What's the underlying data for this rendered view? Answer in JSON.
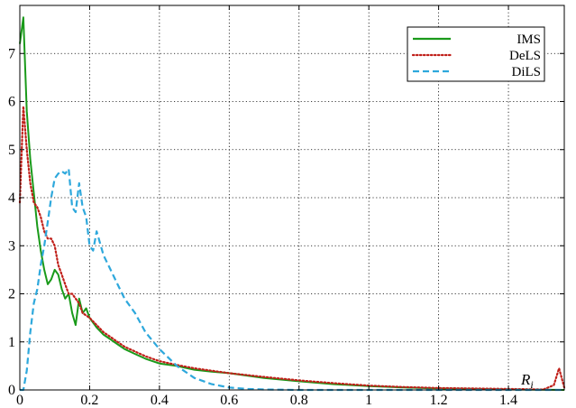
{
  "chart_data": {
    "type": "line",
    "title": "",
    "xlabel": "R",
    "xlabel_sub": "i",
    "ylabel": "",
    "xlim": [
      0,
      1.56
    ],
    "ylim": [
      0,
      8
    ],
    "grid": true,
    "legend_position": "top-right",
    "xticks": [
      0,
      0.2,
      0.4,
      0.6,
      0.8,
      1,
      1.2,
      1.4
    ],
    "xtick_labels": [
      "0",
      "0.2",
      "0.4",
      "0.6",
      "0.8",
      "1",
      "1.2",
      "1.4"
    ],
    "yticks": [
      0,
      1,
      2,
      3,
      4,
      5,
      6,
      7
    ],
    "ytick_labels": [
      "0",
      "1",
      "2",
      "3",
      "4",
      "5",
      "6",
      "7"
    ],
    "series": [
      {
        "name": "IMS",
        "color": "#1a9a1a",
        "style": "solid",
        "x": [
          0,
          0.01,
          0.02,
          0.03,
          0.04,
          0.05,
          0.06,
          0.07,
          0.08,
          0.09,
          0.1,
          0.11,
          0.12,
          0.13,
          0.14,
          0.15,
          0.16,
          0.17,
          0.18,
          0.19,
          0.2,
          0.22,
          0.24,
          0.26,
          0.28,
          0.3,
          0.33,
          0.36,
          0.4,
          0.45,
          0.5,
          0.55,
          0.6,
          0.7,
          0.8,
          0.9,
          1.0,
          1.1,
          1.2,
          1.3,
          1.4,
          1.5,
          1.56
        ],
        "values": [
          7.2,
          7.75,
          5.8,
          4.8,
          4.1,
          3.4,
          2.9,
          2.5,
          2.2,
          2.3,
          2.5,
          2.4,
          2.1,
          1.9,
          2.0,
          1.6,
          1.35,
          1.9,
          1.6,
          1.7,
          1.5,
          1.3,
          1.15,
          1.05,
          0.95,
          0.85,
          0.75,
          0.65,
          0.55,
          0.5,
          0.42,
          0.38,
          0.35,
          0.25,
          0.18,
          0.12,
          0.08,
          0.05,
          0.03,
          0.02,
          0.01,
          0.005,
          0.0
        ]
      },
      {
        "name": "DeLS",
        "color": "#c0201a",
        "style": "dotted",
        "x": [
          0,
          0.01,
          0.02,
          0.03,
          0.04,
          0.05,
          0.06,
          0.07,
          0.08,
          0.09,
          0.1,
          0.11,
          0.12,
          0.13,
          0.14,
          0.15,
          0.16,
          0.17,
          0.18,
          0.19,
          0.2,
          0.22,
          0.24,
          0.26,
          0.28,
          0.3,
          0.33,
          0.36,
          0.4,
          0.45,
          0.5,
          0.55,
          0.6,
          0.7,
          0.8,
          0.9,
          1.0,
          1.1,
          1.2,
          1.3,
          1.4,
          1.5,
          1.53,
          1.545,
          1.56
        ],
        "values": [
          3.9,
          5.9,
          5.0,
          4.3,
          3.9,
          3.8,
          3.6,
          3.3,
          3.15,
          3.15,
          3.0,
          2.6,
          2.4,
          2.2,
          2.0,
          2.0,
          1.9,
          1.8,
          1.6,
          1.55,
          1.5,
          1.35,
          1.2,
          1.1,
          1.0,
          0.9,
          0.8,
          0.7,
          0.6,
          0.52,
          0.45,
          0.4,
          0.35,
          0.27,
          0.2,
          0.14,
          0.09,
          0.06,
          0.04,
          0.03,
          0.02,
          0.01,
          0.1,
          0.45,
          0.05
        ]
      },
      {
        "name": "DiLS",
        "color": "#2ea8dc",
        "style": "dashed",
        "x": [
          0,
          0.01,
          0.02,
          0.03,
          0.04,
          0.05,
          0.06,
          0.07,
          0.08,
          0.09,
          0.1,
          0.11,
          0.12,
          0.13,
          0.14,
          0.15,
          0.16,
          0.17,
          0.18,
          0.19,
          0.2,
          0.21,
          0.22,
          0.24,
          0.26,
          0.28,
          0.3,
          0.33,
          0.36,
          0.4,
          0.45,
          0.5,
          0.55,
          0.6,
          0.65,
          0.7,
          0.8,
          0.9,
          1.0,
          1.2,
          1.4,
          1.56
        ],
        "values": [
          0.0,
          0.0,
          0.4,
          1.2,
          1.8,
          2.1,
          2.6,
          3.0,
          3.5,
          4.0,
          4.4,
          4.5,
          4.55,
          4.5,
          4.6,
          3.8,
          3.7,
          4.3,
          3.8,
          3.6,
          3.0,
          2.9,
          3.3,
          2.8,
          2.5,
          2.2,
          1.9,
          1.6,
          1.2,
          0.85,
          0.5,
          0.25,
          0.12,
          0.05,
          0.02,
          0.01,
          0.0,
          0.0,
          0.0,
          0.0,
          0.0,
          0.0
        ]
      }
    ]
  }
}
